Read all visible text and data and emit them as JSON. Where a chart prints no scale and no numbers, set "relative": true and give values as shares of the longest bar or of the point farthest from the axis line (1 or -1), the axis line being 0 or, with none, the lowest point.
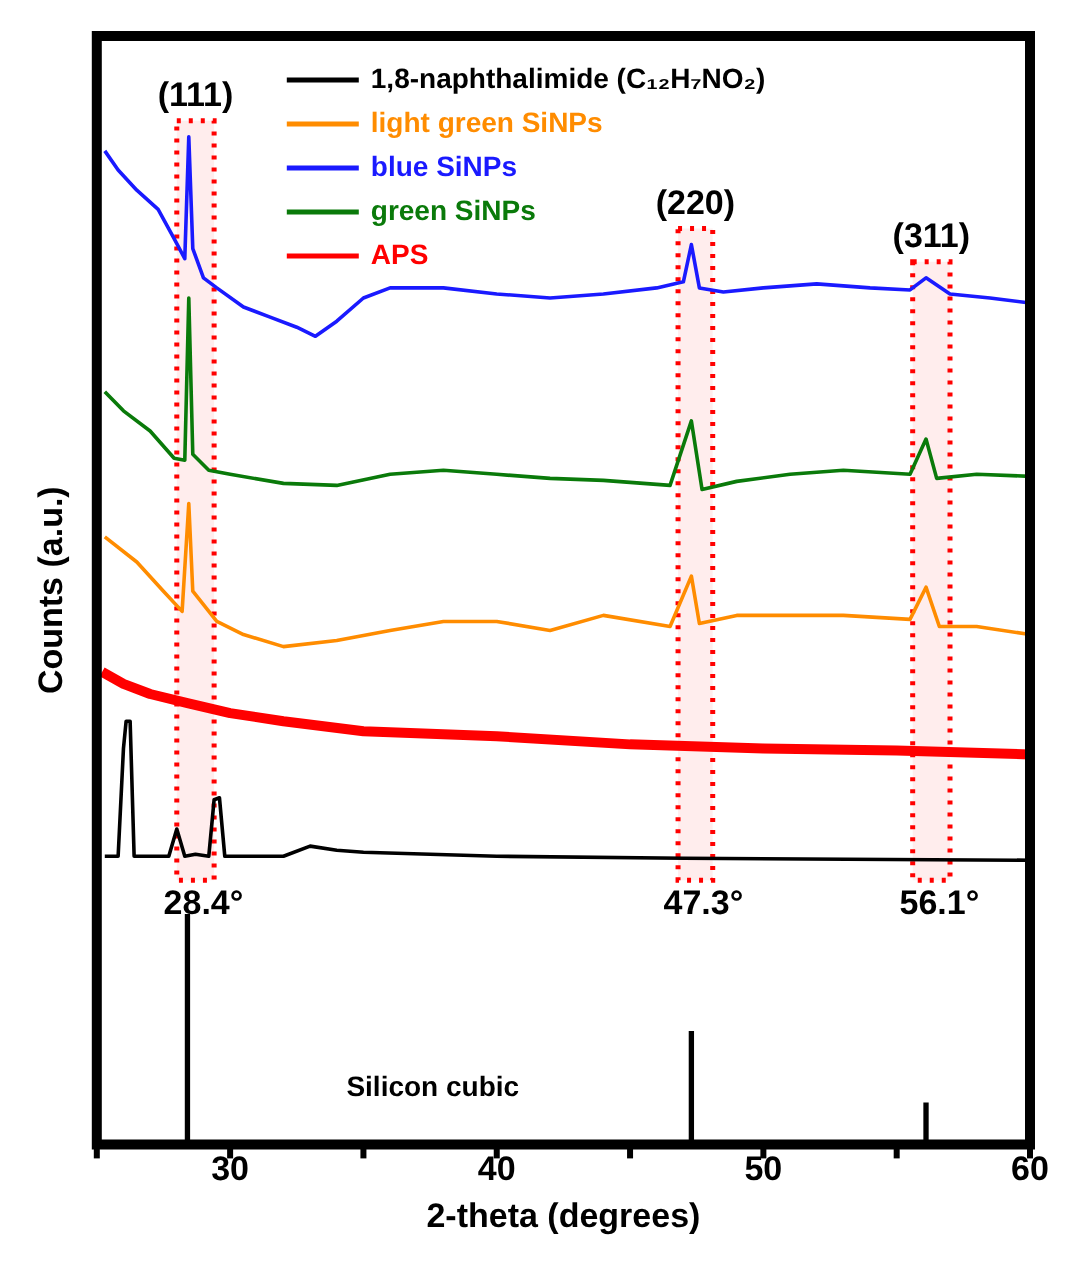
{
  "chart_data": {
    "type": "line",
    "relative": true,
    "xlabel": "2-theta (degrees)",
    "ylabel": "Counts (a.u.)",
    "xlim": [
      25,
      60
    ],
    "xticks": [
      {
        "value": 25,
        "label": null
      },
      30,
      {
        "value": 35,
        "label": null
      },
      40,
      {
        "value": 45,
        "label": null
      },
      50,
      {
        "value": 55,
        "label": null
      },
      60
    ],
    "grid": false,
    "legend": "top left",
    "marker": "none",
    "line_style": "solid",
    "series": [
      {
        "name": "1,8-naphthalimide (C₁₂H₇NO₂)",
        "color": "#000000",
        "x": [
          25.3,
          25.8,
          26.0,
          26.1,
          26.25,
          26.4,
          27.7,
          28.0,
          28.3,
          28.7,
          29.2,
          29.4,
          29.6,
          29.8,
          32,
          33,
          34,
          35,
          40,
          47,
          60
        ],
        "values": [
          0.286,
          0.286,
          0.393,
          0.42,
          0.42,
          0.286,
          0.286,
          0.313,
          0.286,
          0.288,
          0.286,
          0.342,
          0.344,
          0.286,
          0.286,
          0.296,
          0.292,
          0.29,
          0.286,
          0.284,
          0.282
        ]
      },
      {
        "name": "light green SiNPs",
        "color": "#ff8c00",
        "x": [
          25.3,
          26.5,
          27.5,
          28.2,
          28.45,
          28.6,
          29.5,
          30.5,
          32,
          34,
          36,
          38,
          40,
          42,
          44,
          46.5,
          47.3,
          47.6,
          49,
          51,
          53,
          55.5,
          56.1,
          56.6,
          58,
          60
        ],
        "values": [
          0.603,
          0.578,
          0.549,
          0.529,
          0.636,
          0.549,
          0.519,
          0.506,
          0.494,
          0.5,
          0.51,
          0.519,
          0.519,
          0.51,
          0.525,
          0.514,
          0.564,
          0.517,
          0.525,
          0.525,
          0.525,
          0.521,
          0.553,
          0.514,
          0.514,
          0.506
        ]
      },
      {
        "name": "blue SiNPs",
        "color": "#1a1aff",
        "x": [
          25.3,
          25.8,
          26.5,
          27.3,
          27.9,
          28.3,
          28.45,
          28.6,
          29.0,
          29.5,
          30.5,
          31.5,
          32.5,
          33.2,
          34,
          35,
          36,
          38,
          40,
          42,
          44,
          46,
          47.0,
          47.3,
          47.6,
          48.5,
          50,
          52,
          54,
          55.5,
          56.1,
          57,
          58.5,
          60
        ],
        "values": [
          0.986,
          0.967,
          0.947,
          0.928,
          0.899,
          0.879,
          1,
          0.889,
          0.86,
          0.85,
          0.831,
          0.821,
          0.811,
          0.802,
          0.817,
          0.84,
          0.85,
          0.85,
          0.844,
          0.84,
          0.844,
          0.85,
          0.856,
          0.893,
          0.85,
          0.846,
          0.85,
          0.854,
          0.85,
          0.848,
          0.86,
          0.844,
          0.84,
          0.835
        ]
      },
      {
        "name": "green SiNPs",
        "color": "#0a7a0a",
        "x": [
          25.3,
          26.0,
          27.0,
          27.9,
          28.3,
          28.45,
          28.6,
          29.2,
          30,
          32,
          34,
          36,
          38,
          40,
          42,
          44,
          46.5,
          47.3,
          47.7,
          49,
          51,
          53,
          55.5,
          56.1,
          56.5,
          58,
          60
        ],
        "values": [
          0.747,
          0.728,
          0.708,
          0.681,
          0.679,
          0.84,
          0.685,
          0.669,
          0.665,
          0.656,
          0.654,
          0.665,
          0.669,
          0.665,
          0.661,
          0.659,
          0.654,
          0.718,
          0.65,
          0.658,
          0.665,
          0.669,
          0.665,
          0.7,
          0.661,
          0.665,
          0.663
        ]
      },
      {
        "name": "APS",
        "color": "#ff0000",
        "x": [
          25.2,
          26,
          27,
          28.4,
          30,
          32,
          35,
          40,
          45,
          50,
          55,
          60
        ],
        "values": [
          0.469,
          0.457,
          0.447,
          0.438,
          0.428,
          0.42,
          0.41,
          0.405,
          0.397,
          0.393,
          0.391,
          0.387
        ]
      },
      {
        "type": "bar",
        "color": "#000000",
        "x": [
          28.4,
          47.3,
          56.1
        ],
        "values": [
          0.228,
          0.112,
          0.041
        ]
      }
    ],
    "bands": [
      {
        "axis": "x",
        "from": 28.0,
        "to": 29.4,
        "color": "#ff0000"
      },
      {
        "axis": "x",
        "from": 46.8,
        "to": 48.1,
        "color": "#ff0000"
      },
      {
        "axis": "x",
        "from": 55.6,
        "to": 57.0,
        "color": "#ff0000"
      }
    ],
    "annotations": [
      "(111)",
      "(220)",
      "(311)",
      "28.4°",
      "47.3°",
      "56.1°",
      "Silicon cubic"
    ]
  }
}
